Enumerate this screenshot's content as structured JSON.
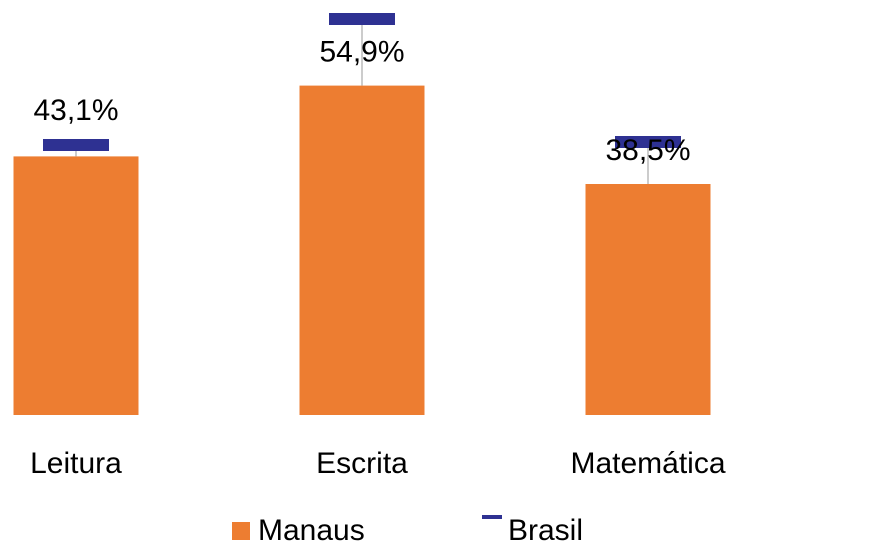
{
  "chart_data": {
    "type": "bar",
    "categories": [
      "Leitura",
      "Escrita",
      "Matemática"
    ],
    "series": [
      {
        "name": "Manaus",
        "color": "#ed7d31",
        "type": "bar",
        "values": [
          43.1,
          54.9,
          38.5
        ],
        "value_labels": [
          "43,1%",
          "54,9%",
          "38,5%"
        ]
      },
      {
        "name": "Brasil",
        "color": "#2e3192",
        "type": "marker",
        "values": [
          45,
          66,
          45.5
        ]
      }
    ],
    "legend": "bottom"
  }
}
